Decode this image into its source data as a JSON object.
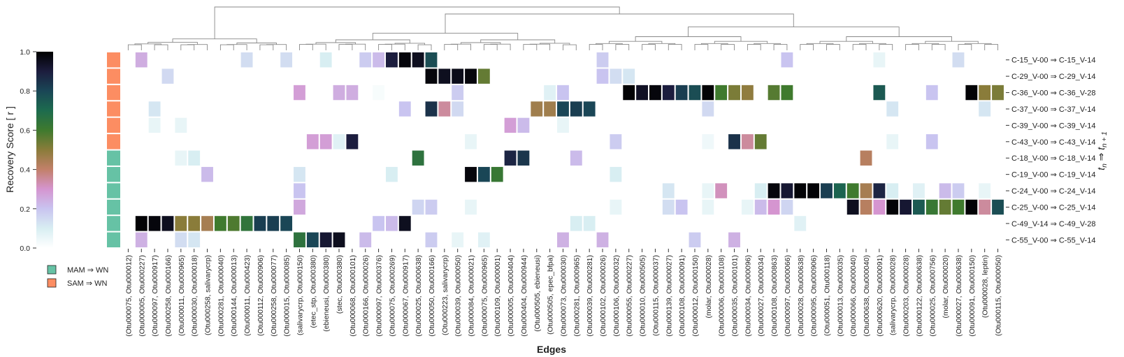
{
  "chart_data": {
    "type": "heatmap",
    "title": "",
    "xlabel": "Edges",
    "ylabel": "t_n ⇒ t_n+1",
    "colorbar": {
      "label": "Recovery Score [ r ]",
      "range": [
        0.0,
        1.0
      ],
      "ticks": [
        "1.0",
        "0.8",
        "0.6",
        "0.4",
        "0.2",
        "0.0"
      ],
      "colormap": "cubehelix_r"
    },
    "legend": {
      "placement": "bottom-left",
      "items": [
        {
          "label": "MAM ⇒ WN",
          "color": "#66c2a5"
        },
        {
          "label": "SAM ⇒ WN",
          "color": "#fc8d62"
        }
      ]
    },
    "row_groups": [
      "SAM",
      "SAM",
      "SAM",
      "SAM",
      "SAM",
      "SAM",
      "MAM",
      "MAM",
      "MAM",
      "MAM",
      "MAM",
      "MAM"
    ],
    "rows": [
      "C-15_V-00 ⇒ C-15_V-14",
      "C-29_V-00 ⇒ C-29_V-14",
      "C-36_V-00 ⇒ C-36_V-28",
      "C-37_V-00 ⇒ C-37_V-14",
      "C-39_V-00 ⇒ C-39_V-14",
      "C-43_V-00 ⇒ C-43_V-14",
      "C-18_V-00 ⇒ C-18_V-14",
      "C-19_V-00 ⇒ C-19_V-14",
      "C-24_V-00 ⇒ C-24_V-14",
      "C-25_V-00 ⇒ C-25_V-14",
      "C-49_V-14 ⇒ C-49_V-28",
      "C-55_V-00 ⇒ C-55_V-14"
    ],
    "columns": [
      "(Otu000075, Otu000012)",
      "(Otu000005, Otu000227)",
      "(Otu000097, Otu000917)",
      "(Otu000258, Otu000166)",
      "(Otu000011, Otu000965)",
      "(Otu000030, Otu000018)",
      "(Otu000258, salivarycrp)",
      "(Otu000281, Otu000040)",
      "(Otu000144, Otu000013)",
      "(Otu000011, Otu000423)",
      "(Otu000112, Otu000906)",
      "(Otu000258, Otu000077)",
      "(Otu000015, Otu000085)",
      "(salivarycrp, Otu000150)",
      "(etec_stp, Otu000380)",
      "(ebieneusi, Otu000380)",
      "(stec, Otu000380)",
      "(Otu000068, Otu000101)",
      "(Otu000166, Otu000026)",
      "(Otu000097, Otu000376)",
      "(Otu000075, Otu000269)",
      "(Otu000067, Otu000917)",
      "(Otu000025, Otu000638)",
      "(Otu000050, Otu000166)",
      "(Otu000223, salivarycrp)",
      "(Otu000039, Otu000050)",
      "(Otu000084, Otu000021)",
      "(Otu000075, Otu000965)",
      "(Otu000109, Otu000001)",
      "(Otu000005, Otu000404)",
      "(Otu000404, Otu000944)",
      "(Otu000505, ebieneusi)",
      "(Otu000505, epec_bfpa)",
      "(Otu000073, Otu000030)",
      "(Otu000281, Otu000965)",
      "(Otu000039, Otu000281)",
      "(Otu000102, Otu000026)",
      "(Otu000106, Otu000032)",
      "(Otu000055, Otu000227)",
      "(Otu000010, Otu000505)",
      "(Otu000115, Otu000037)",
      "(Otu000139, Otu000027)",
      "(Otu000108, Otu000091)",
      "(Otu000012, Otu000150)",
      "(molar, Otu000028)",
      "(Otu000006, Otu000108)",
      "(Otu000035, Otu000101)",
      "(Otu000034, Otu000096)",
      "(Otu000027, Otu000034)",
      "(Otu000108, Otu000863)",
      "(Otu000097, Otu000066)",
      "(Otu000028, Otu000638)",
      "(Otu000095, Otu000906)",
      "(Otu000051, Otu000118)",
      "(Otu000013, Otu000035)",
      "(Otu000066, Otu000040)",
      "(Otu000638, Otu000040)",
      "(Otu000620, Otu000091)",
      "(salivarycrp, Otu000028)",
      "(Otu000203, Otu000028)",
      "(Otu000122, Otu000638)",
      "(Otu000025, Otu000756)",
      "(molar, Otu000020)",
      "(Otu000027, Otu000638)",
      "(Otu000091, Otu000150)",
      "(Otu000028, leptin)",
      "(Otu000115, Otu000050)"
    ],
    "values": [
      [
        0.0,
        0.25,
        0.0,
        0.0,
        0.0,
        0.0,
        0.0,
        0.0,
        0.0,
        0.14,
        0.0,
        0.0,
        0.14,
        0.0,
        0.0,
        0.1,
        0.0,
        0.0,
        0.18,
        0.22,
        0.9,
        0.98,
        0.95,
        0.78,
        0.0,
        0.0,
        0.0,
        0.0,
        0.0,
        0.0,
        0.0,
        0.0,
        0.0,
        0.0,
        0.0,
        0.0,
        0.18,
        0.0,
        0.0,
        0.0,
        0.0,
        0.0,
        0.0,
        0.0,
        0.0,
        0.0,
        0.0,
        0.0,
        0.0,
        0.0,
        0.2,
        0.0,
        0.0,
        0.0,
        0.0,
        0.0,
        0.0,
        0.06,
        0.0,
        0.0,
        0.0,
        0.0,
        0.0,
        0.14,
        0.0,
        0.0,
        0.0
      ],
      [
        0.0,
        0.0,
        0.0,
        0.15,
        0.0,
        0.0,
        0.0,
        0.0,
        0.0,
        0.0,
        0.0,
        0.0,
        0.0,
        0.0,
        0.0,
        0.0,
        0.0,
        0.0,
        0.0,
        0.0,
        0.0,
        0.0,
        0.0,
        0.98,
        0.95,
        0.96,
        0.98,
        0.55,
        0.0,
        0.0,
        0.0,
        0.0,
        0.0,
        0.0,
        0.0,
        0.0,
        0.2,
        0.14,
        0.12,
        0.0,
        0.0,
        0.0,
        0.0,
        0.0,
        0.0,
        0.0,
        0.0,
        0.0,
        0.0,
        0.0,
        0.0,
        0.0,
        0.0,
        0.0,
        0.0,
        0.0,
        0.0,
        0.0,
        0.0,
        0.0,
        0.0,
        0.0,
        0.0,
        0.0,
        0.0,
        0.0,
        0.0
      ],
      [
        0.0,
        0.0,
        0.0,
        0.0,
        0.0,
        0.0,
        0.0,
        0.0,
        0.0,
        0.0,
        0.0,
        0.0,
        0.0,
        0.28,
        0.0,
        0.0,
        0.25,
        0.25,
        0.0,
        0.02,
        0.0,
        0.0,
        0.0,
        0.0,
        0.0,
        0.18,
        0.0,
        0.0,
        0.0,
        0.0,
        0.0,
        0.0,
        0.08,
        0.2,
        0.0,
        0.0,
        0.0,
        0.0,
        0.99,
        0.94,
        0.98,
        0.9,
        0.82,
        0.78,
        0.99,
        0.6,
        0.52,
        0.49,
        0.0,
        0.57,
        0.6,
        0.0,
        0.0,
        0.0,
        0.0,
        0.0,
        0.0,
        0.75,
        0.0,
        0.0,
        0.0,
        0.2,
        0.0,
        0.0,
        0.99,
        0.5,
        0.52
      ],
      [
        0.0,
        0.0,
        0.12,
        0.0,
        0.0,
        0.0,
        0.0,
        0.0,
        0.0,
        0.0,
        0.0,
        0.0,
        0.0,
        0.0,
        0.0,
        0.0,
        0.0,
        0.0,
        0.0,
        0.0,
        0.0,
        0.2,
        0.0,
        0.85,
        0.35,
        0.15,
        0.0,
        0.0,
        0.0,
        0.0,
        0.0,
        0.46,
        0.46,
        0.8,
        0.82,
        0.8,
        0.0,
        0.0,
        0.0,
        0.0,
        0.0,
        0.0,
        0.0,
        0.0,
        0.15,
        0.0,
        0.0,
        0.0,
        0.0,
        0.0,
        0.0,
        0.0,
        0.0,
        0.0,
        0.0,
        0.0,
        0.0,
        0.0,
        0.12,
        0.0,
        0.0,
        0.0,
        0.0,
        0.0,
        0.0,
        0.12,
        0.0
      ],
      [
        0.0,
        0.0,
        0.06,
        0.0,
        0.06,
        0.0,
        0.0,
        0.0,
        0.0,
        0.0,
        0.0,
        0.0,
        0.0,
        0.0,
        0.0,
        0.0,
        0.0,
        0.0,
        0.0,
        0.0,
        0.0,
        0.0,
        0.0,
        0.0,
        0.0,
        0.0,
        0.0,
        0.0,
        0.0,
        0.28,
        0.22,
        0.0,
        0.0,
        0.06,
        0.0,
        0.0,
        0.0,
        0.0,
        0.0,
        0.0,
        0.0,
        0.0,
        0.0,
        0.0,
        0.0,
        0.0,
        0.0,
        0.0,
        0.0,
        0.0,
        0.0,
        0.0,
        0.0,
        0.0,
        0.0,
        0.0,
        0.0,
        0.0,
        0.0,
        0.0,
        0.0,
        0.0,
        0.0,
        0.0,
        0.0,
        0.0,
        0.0
      ],
      [
        0.0,
        0.0,
        0.0,
        0.0,
        0.0,
        0.0,
        0.0,
        0.0,
        0.0,
        0.0,
        0.0,
        0.0,
        0.0,
        0.0,
        0.28,
        0.28,
        0.08,
        0.9,
        0.0,
        0.0,
        0.0,
        0.0,
        0.0,
        0.0,
        0.0,
        0.0,
        0.06,
        0.0,
        0.0,
        0.0,
        0.0,
        0.0,
        0.0,
        0.0,
        0.0,
        0.0,
        0.0,
        0.18,
        0.0,
        0.0,
        0.0,
        0.0,
        0.0,
        0.0,
        0.04,
        0.0,
        0.85,
        0.35,
        0.55,
        0.0,
        0.0,
        0.0,
        0.0,
        0.0,
        0.0,
        0.0,
        0.0,
        0.0,
        0.06,
        0.0,
        0.0,
        0.2,
        0.0,
        0.0,
        0.0,
        0.0,
        0.0
      ],
      [
        0.0,
        0.0,
        0.0,
        0.0,
        0.06,
        0.1,
        0.0,
        0.0,
        0.0,
        0.0,
        0.0,
        0.0,
        0.0,
        0.0,
        0.0,
        0.0,
        0.0,
        0.0,
        0.0,
        0.0,
        0.0,
        0.0,
        0.65,
        0.0,
        0.0,
        0.0,
        0.0,
        0.0,
        0.0,
        0.88,
        0.84,
        0.0,
        0.0,
        0.0,
        0.22,
        0.0,
        0.0,
        0.0,
        0.0,
        0.0,
        0.0,
        0.0,
        0.0,
        0.0,
        0.0,
        0.0,
        0.0,
        0.0,
        0.0,
        0.0,
        0.0,
        0.0,
        0.0,
        0.0,
        0.0,
        0.0,
        0.42,
        0.0,
        0.0,
        0.0,
        0.0,
        0.0,
        0.0,
        0.0,
        0.0,
        0.0,
        0.0
      ],
      [
        0.0,
        0.0,
        0.0,
        0.0,
        0.0,
        0.0,
        0.22,
        0.0,
        0.0,
        0.0,
        0.0,
        0.0,
        0.0,
        0.12,
        0.0,
        0.0,
        0.0,
        0.0,
        0.0,
        0.0,
        0.1,
        0.0,
        0.0,
        0.0,
        0.0,
        0.0,
        0.98,
        0.8,
        0.62,
        0.0,
        0.0,
        0.0,
        0.0,
        0.0,
        0.0,
        0.0,
        0.0,
        0.1,
        0.0,
        0.0,
        0.0,
        0.0,
        0.0,
        0.0,
        0.0,
        0.0,
        0.0,
        0.0,
        0.0,
        0.0,
        0.0,
        0.0,
        0.0,
        0.0,
        0.0,
        0.0,
        0.0,
        0.0,
        0.0,
        0.0,
        0.0,
        0.0,
        0.0,
        0.0,
        0.0,
        0.0,
        0.0
      ],
      [
        0.0,
        0.0,
        0.0,
        0.0,
        0.0,
        0.0,
        0.0,
        0.0,
        0.0,
        0.0,
        0.0,
        0.0,
        0.0,
        0.2,
        0.0,
        0.0,
        0.0,
        0.0,
        0.0,
        0.0,
        0.0,
        0.0,
        0.0,
        0.0,
        0.0,
        0.0,
        0.0,
        0.0,
        0.0,
        0.0,
        0.0,
        0.0,
        0.0,
        0.0,
        0.0,
        0.0,
        0.0,
        0.0,
        0.0,
        0.0,
        0.0,
        0.12,
        0.0,
        0.0,
        0.06,
        0.32,
        0.0,
        0.0,
        0.1,
        0.98,
        0.92,
        0.99,
        0.99,
        0.82,
        0.72,
        0.6,
        0.45,
        0.88,
        0.1,
        0.0,
        0.08,
        0.0,
        0.22,
        0.18,
        0.0,
        0.06,
        0.0
      ],
      [
        0.0,
        0.0,
        0.0,
        0.0,
        0.0,
        0.0,
        0.0,
        0.0,
        0.0,
        0.0,
        0.0,
        0.0,
        0.0,
        0.26,
        0.0,
        0.0,
        0.0,
        0.0,
        0.0,
        0.0,
        0.0,
        0.0,
        0.16,
        0.18,
        0.0,
        0.0,
        0.06,
        0.0,
        0.0,
        0.0,
        0.0,
        0.0,
        0.0,
        0.0,
        0.0,
        0.0,
        0.0,
        0.06,
        0.0,
        0.0,
        0.0,
        0.14,
        0.2,
        0.0,
        0.06,
        0.0,
        0.0,
        0.06,
        0.22,
        0.3,
        0.16,
        0.0,
        0.0,
        0.0,
        0.0,
        0.95,
        0.42,
        0.3,
        0.99,
        0.92,
        0.75,
        0.62,
        0.55,
        0.6,
        0.99,
        0.35,
        0.78
      ],
      [
        0.0,
        0.99,
        0.98,
        0.95,
        0.5,
        0.5,
        0.45,
        0.6,
        0.58,
        0.64,
        0.82,
        0.82,
        0.8,
        0.0,
        0.0,
        0.0,
        0.0,
        0.0,
        0.0,
        0.2,
        0.22,
        0.95,
        0.0,
        0.0,
        0.0,
        0.0,
        0.0,
        0.0,
        0.0,
        0.0,
        0.0,
        0.0,
        0.0,
        0.0,
        0.1,
        0.1,
        0.0,
        0.0,
        0.0,
        0.0,
        0.0,
        0.0,
        0.0,
        0.0,
        0.0,
        0.0,
        0.0,
        0.0,
        0.0,
        0.0,
        0.0,
        0.08,
        0.0,
        0.0,
        0.0,
        0.0,
        0.0,
        0.0,
        0.0,
        0.0,
        0.0,
        0.0,
        0.0,
        0.0,
        0.0,
        0.0,
        0.0
      ],
      [
        0.0,
        0.24,
        0.0,
        0.0,
        0.14,
        0.12,
        0.0,
        0.0,
        0.0,
        0.0,
        0.0,
        0.0,
        0.0,
        0.65,
        0.8,
        0.92,
        0.95,
        0.0,
        0.22,
        0.0,
        0.0,
        0.0,
        0.0,
        0.18,
        0.0,
        0.06,
        0.0,
        0.08,
        0.0,
        0.0,
        0.0,
        0.0,
        0.0,
        0.24,
        0.0,
        0.0,
        0.24,
        0.0,
        0.0,
        0.0,
        0.0,
        0.0,
        0.0,
        0.18,
        0.0,
        0.0,
        0.24,
        0.0,
        0.0,
        0.0,
        0.0,
        0.0,
        0.0,
        0.0,
        0.0,
        0.0,
        0.0,
        0.0,
        0.0,
        0.0,
        0.0,
        0.0,
        0.0,
        0.0,
        0.0,
        0.0,
        0.0
      ]
    ]
  }
}
